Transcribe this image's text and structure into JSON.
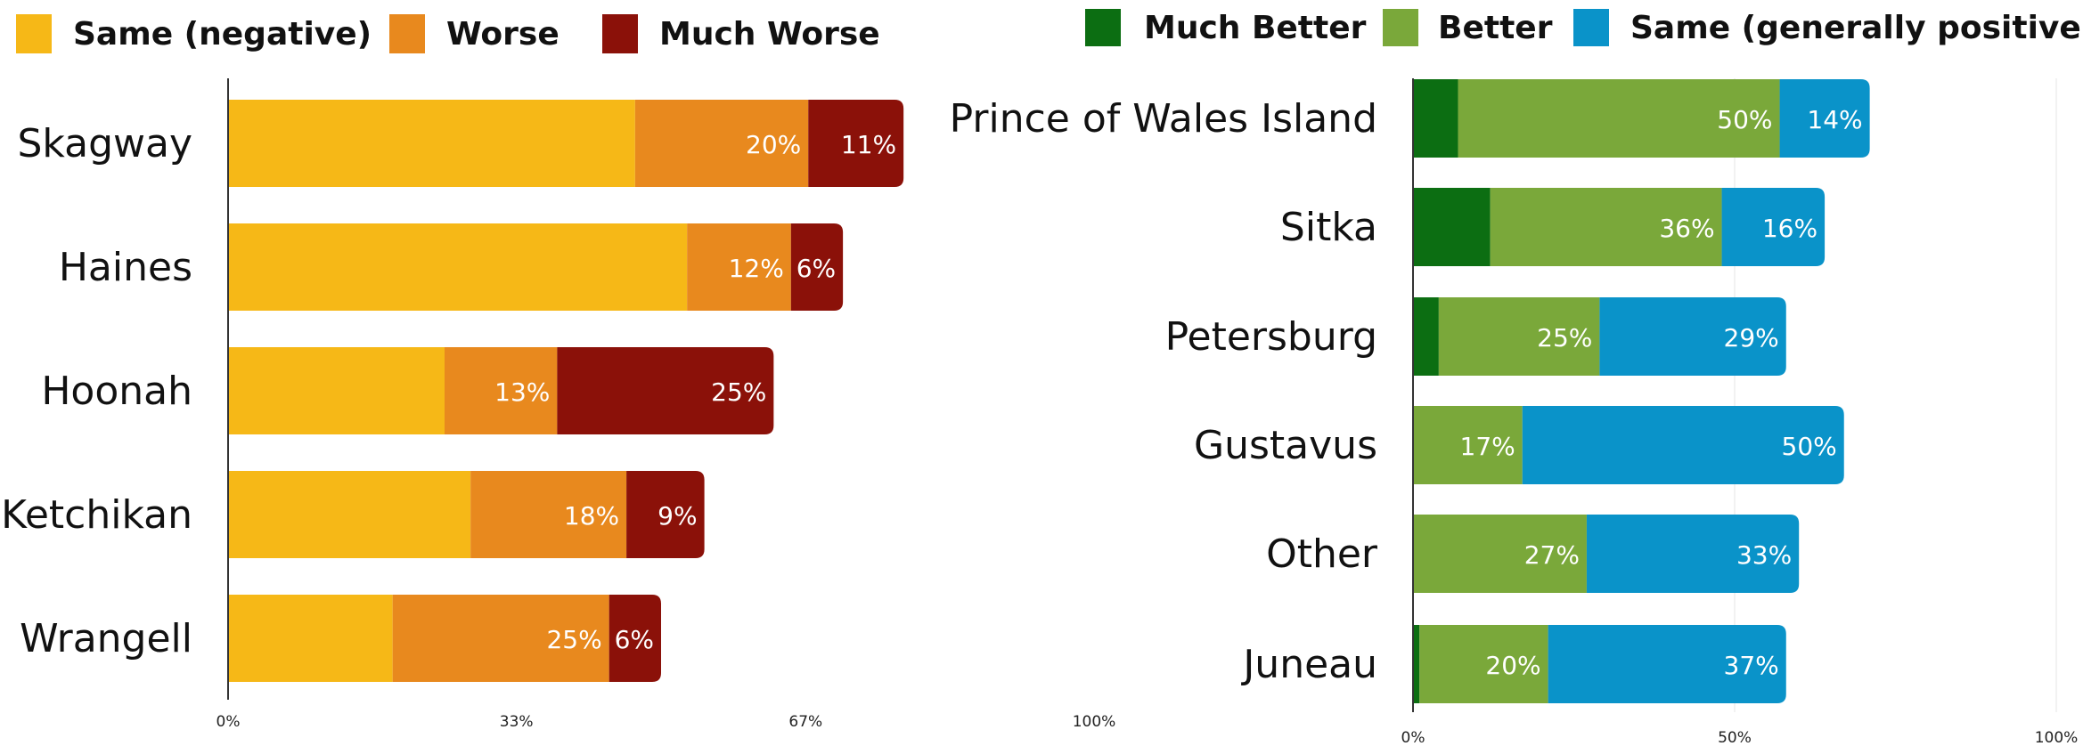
{
  "chart_data": [
    {
      "type": "bar",
      "orientation": "horizontal",
      "stacked": true,
      "categories": [
        "Skagway",
        "Haines",
        "Hoonah",
        "Ketchikan",
        "Wrangell"
      ],
      "series": [
        {
          "name": "Same (negative)",
          "values": [
            47,
            53,
            25,
            28,
            19
          ],
          "labels": [
            "",
            "",
            "",
            "",
            ""
          ]
        },
        {
          "name": "Worse",
          "values": [
            20,
            12,
            13,
            18,
            25
          ],
          "labels": [
            "20%",
            "12%",
            "13%",
            "18%",
            "25%"
          ]
        },
        {
          "name": "Much Worse",
          "values": [
            11,
            6,
            25,
            9,
            6
          ],
          "labels": [
            "11%",
            "6%",
            "25%",
            "9%",
            "6%"
          ]
        }
      ],
      "xlim": [
        0,
        100
      ],
      "xticks": [
        0,
        33.3,
        66.7,
        100
      ],
      "xtick_labels": [
        "0%",
        "33%",
        "67%",
        "100%"
      ],
      "legend_position": "top"
    },
    {
      "type": "bar",
      "orientation": "horizontal",
      "stacked": true,
      "categories": [
        "Prince of Wales Island",
        "Sitka",
        "Petersburg",
        "Gustavus",
        "Other",
        "Juneau"
      ],
      "series": [
        {
          "name": "Much Better",
          "values": [
            7,
            12,
            4,
            0,
            0,
            1
          ],
          "labels": [
            "",
            "",
            "",
            "",
            "",
            ""
          ]
        },
        {
          "name": "Better",
          "values": [
            50,
            36,
            25,
            17,
            27,
            20
          ],
          "labels": [
            "50%",
            "36%",
            "25%",
            "17%",
            "27%",
            "20%"
          ]
        },
        {
          "name": "Same (generally positive)",
          "values": [
            14,
            16,
            29,
            50,
            33,
            37
          ],
          "labels": [
            "14%",
            "16%",
            "29%",
            "50%",
            "33%",
            "37%"
          ]
        }
      ],
      "xlim": [
        0,
        100
      ],
      "xticks": [
        0,
        50,
        100
      ],
      "xtick_labels": [
        "0%",
        "50%",
        "100%"
      ],
      "legend_position": "top"
    }
  ],
  "colors": {
    "same_negative": "#F6B817",
    "worse": "#E8891E",
    "much_worse": "#8B1109",
    "much_better": "#0C6E12",
    "better": "#7AA83A",
    "same_positive": "#0A93C9"
  }
}
